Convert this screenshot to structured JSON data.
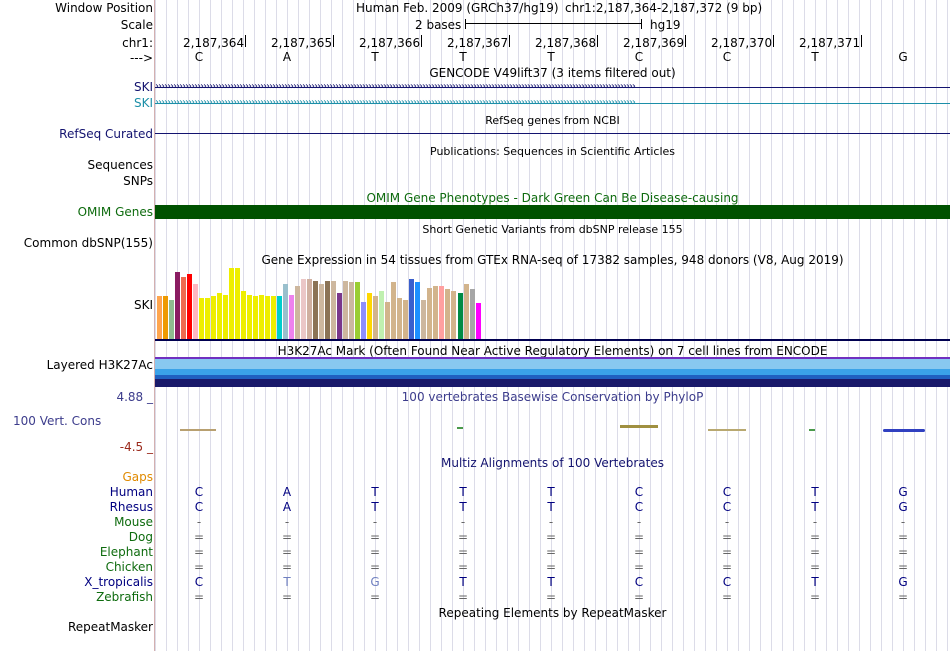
{
  "labels": {
    "window_position": "Window Position",
    "scale": "Scale",
    "chr": "chr1:",
    "arrow": "--->",
    "ski1": "SKI",
    "ski2": "SKI",
    "refseq": "RefSeq Curated",
    "sequences": "Sequences",
    "snps": "SNPs",
    "omim": "OMIM Genes",
    "common_dbsnp": "Common dbSNP(155)",
    "gtex_ski": "SKI",
    "h3k27ac": "Layered H3K27Ac",
    "phylop_max": "4.88 _",
    "vert_cons": "100 Vert. Cons",
    "phylop_min": "-4.5 _",
    "gaps": "Gaps",
    "repeatmasker": "RepeatMasker"
  },
  "header": {
    "assembly": "Human Feb. 2009 (GRCh37/hg19)",
    "position": "chr1:2,187,364-2,187,372 (9 bp)",
    "scale_text": "2 bases",
    "scale_db": "hg19"
  },
  "ruler": {
    "positions": [
      "2,187,364",
      "2,187,365",
      "2,187,366",
      "2,187,367",
      "2,187,368",
      "2,187,369",
      "2,187,370",
      "2,187,371"
    ],
    "bases": [
      "C",
      "A",
      "T",
      "T",
      "T",
      "C",
      "C",
      "T",
      "G"
    ]
  },
  "tracks": {
    "gencode_title": "GENCODE V49lift37 (3 items filtered out)",
    "refseq_title": "RefSeq genes from NCBI",
    "pubs_title": "Publications: Sequences in Scientific Articles",
    "omim_title": "OMIM Gene Phenotypes - Dark Green Can Be Disease-causing",
    "snp_title": "Short Genetic Variants from dbSNP release 155",
    "gtex_title": "Gene Expression in 54 tissues from GTEx RNA-seq of 17382 samples, 948 donors (V8, Aug 2019)",
    "h3k27ac_title": "H3K27Ac Mark (Often Found Near Active Regulatory Elements) on 7 cell lines from ENCODE",
    "phylop_title": "100 vertebrates Basewise Conservation by PhyloP",
    "multiz_title": "Multiz Alignments of 100 Vertebrates",
    "repeat_title": "Repeating Elements by RepeatMasker"
  },
  "colors": {
    "omim_bar": "#005200",
    "navy_line": "#13136f",
    "teal_line": "#1c8fa8",
    "h3k_light": "#88c8f0",
    "h3k_mid": "#3aa2e8",
    "h3k_dark": "#1a1a6a"
  },
  "gtex": {
    "values": [
      0.6,
      0.6,
      0.55,
      0.95,
      0.88,
      0.92,
      0.78,
      0.58,
      0.58,
      0.6,
      0.65,
      0.62,
      1.0,
      1.0,
      0.68,
      0.62,
      0.6,
      0.62,
      0.6,
      0.6,
      0.6,
      0.78,
      0.62,
      0.75,
      0.85,
      0.85,
      0.82,
      0.78,
      0.82,
      0.82,
      0.65,
      0.82,
      0.8,
      0.8,
      0.52,
      0.65,
      0.6,
      0.68,
      0.52,
      0.8,
      0.58,
      0.55,
      0.85,
      0.8,
      0.55,
      0.72,
      0.75,
      0.75,
      0.7,
      0.68,
      0.65,
      0.78,
      0.7,
      0.5
    ],
    "colors": [
      "#ffa54f",
      "#ee9a00",
      "#8fbc8f",
      "#8b1c62",
      "#ee6a50",
      "#ff0000",
      "#ffb6c1",
      "#eeee00",
      "#eeee00",
      "#eeee00",
      "#eeee00",
      "#eeee00",
      "#eeee00",
      "#eeee00",
      "#eeee00",
      "#eeee00",
      "#eeee00",
      "#eeee00",
      "#eeee00",
      "#eeee00",
      "#00cdcd",
      "#9ac0cd",
      "#ee82ee",
      "#cdb79e",
      "#ebc7c7",
      "#d0b0a0",
      "#8b7355",
      "#cdb79e",
      "#8b7355",
      "#cdb79e",
      "#7a378b",
      "#cdb79e",
      "#ccb7a0",
      "#9acd32",
      "#8e8efc",
      "#ffd700",
      "#d2b48c",
      "#c0f0b0",
      "#d2b48c",
      "#d2b48c",
      "#d2b48c",
      "#d2b48c",
      "#3a5fcd",
      "#1e90ff",
      "#cdb79e",
      "#d2b48c",
      "#d2b48c",
      "#ffa0a0",
      "#d2b48c",
      "#d2b48c",
      "#008b45",
      "#d2b48c",
      "#a6a6a6",
      "#ff00ff"
    ]
  },
  "multiz": {
    "species": [
      {
        "name": "Human",
        "bases": [
          "C",
          "A",
          "T",
          "T",
          "T",
          "C",
          "C",
          "T",
          "G"
        ]
      },
      {
        "name": "Rhesus",
        "bases": [
          "C",
          "A",
          "T",
          "T",
          "T",
          "C",
          "C",
          "T",
          "G"
        ]
      },
      {
        "name": "Mouse",
        "bases": [
          "-",
          "-",
          "-",
          "-",
          "-",
          "-",
          "-",
          "-",
          "-"
        ]
      },
      {
        "name": "Dog",
        "bases": [
          "=",
          "=",
          "=",
          "=",
          "=",
          "=",
          "=",
          "=",
          "="
        ]
      },
      {
        "name": "Elephant",
        "bases": [
          "=",
          "=",
          "=",
          "=",
          "=",
          "=",
          "=",
          "=",
          "="
        ]
      },
      {
        "name": "Chicken",
        "bases": [
          "=",
          "=",
          "=",
          "=",
          "=",
          "=",
          "=",
          "=",
          "="
        ]
      },
      {
        "name": "X_tropicalis",
        "bases": [
          "C",
          "T",
          "G",
          "T",
          "T",
          "C",
          "C",
          "T",
          "G"
        ]
      },
      {
        "name": "Zebrafish",
        "bases": [
          "=",
          "=",
          "=",
          "=",
          "=",
          "=",
          "=",
          "=",
          "="
        ]
      }
    ]
  }
}
